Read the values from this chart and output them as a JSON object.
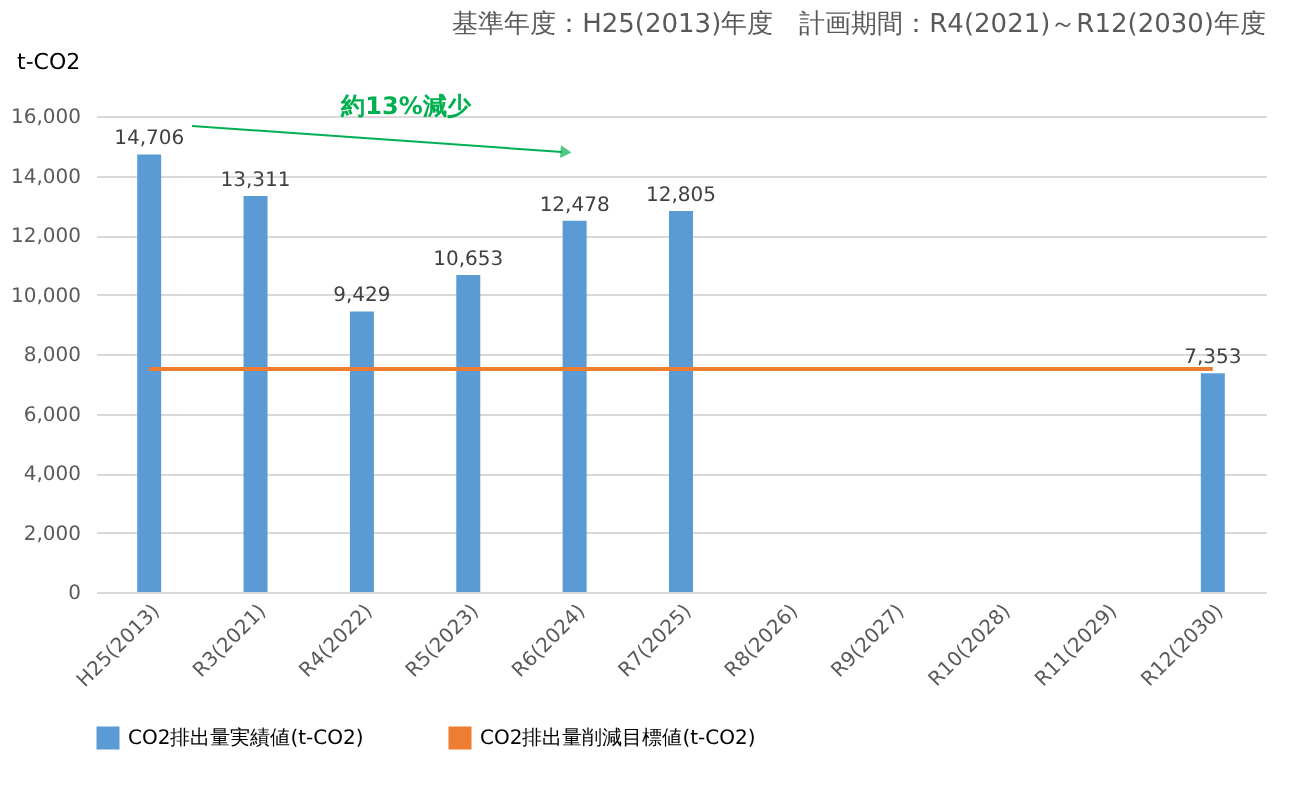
{
  "chart_data": {
    "type": "bar",
    "title": "基準年度：H25(2013)年度　計画期間：R4(2021)～R12(2030)年度",
    "ylabel": "t-CO2",
    "categories": [
      "H25(2013)",
      "R3(2021)",
      "R4(2022)",
      "R5(2023)",
      "R6(2024)",
      "R7(2025)",
      "R8(2026)",
      "R9(2027)",
      "R10(2028)",
      "R11(2029)",
      "R12(2030)"
    ],
    "series": [
      {
        "name": "CO2排出量実績値(t-CO2)",
        "color": "#5b9bd5",
        "values": [
          14706,
          13311,
          9429,
          10653,
          12478,
          12805,
          null,
          null,
          null,
          null,
          7353
        ],
        "value_labels": [
          "14,706",
          "13,311",
          "9,429",
          "10,653",
          "12,478",
          "12,805",
          null,
          null,
          null,
          null,
          "7,353"
        ]
      },
      {
        "name": "CO2排出量削減目標値(t-CO2)",
        "type": "line",
        "color": "#ed7d31",
        "values": [
          7500,
          7500,
          7500,
          7500,
          7500,
          7500,
          7500,
          7500,
          7500,
          7500,
          7500
        ]
      }
    ],
    "annotations": [
      "約13%減少"
    ],
    "ylim": [
      0,
      16000
    ],
    "yticks": [
      0,
      {
        "value": 2000,
        "label": "2,000"
      },
      {
        "value": 4000,
        "label": "4,000"
      },
      {
        "value": 6000,
        "label": "6,000"
      },
      {
        "value": 8000,
        "label": "8,000"
      },
      {
        "value": 10000,
        "label": "10,000"
      },
      {
        "value": 12000,
        "label": "12,000"
      },
      {
        "value": 14000,
        "label": "14,000"
      },
      {
        "value": 16000,
        "label": "16,000"
      }
    ],
    "grid": "y",
    "legend": "bottom"
  }
}
